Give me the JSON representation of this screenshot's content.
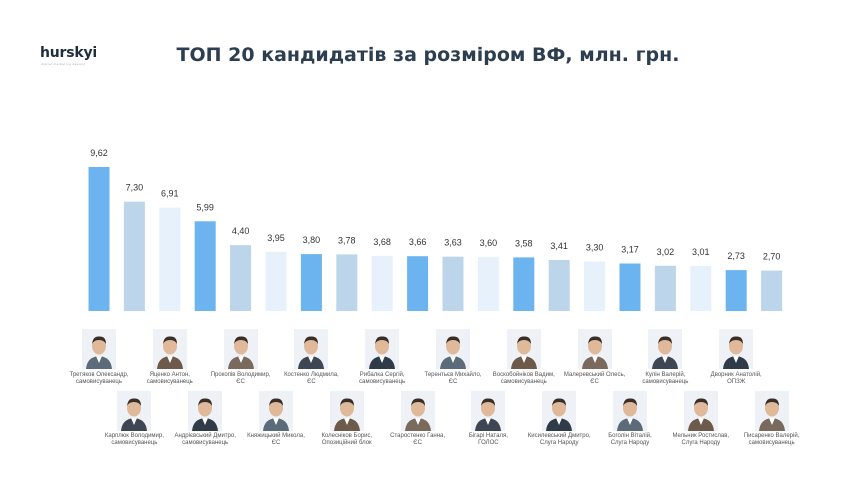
{
  "brand": {
    "logo": "hurskyi",
    "tagline": "digital marketing agency"
  },
  "title": "ТОП 20 кандидатів за розміром ВФ, млн. грн.",
  "colors": {
    "strong": "#6cb4ef",
    "medium": "#bcd5ea",
    "light": "#e6f1fb"
  },
  "chart_data": {
    "type": "bar",
    "title": "ТОП 20 кандидатів за розміром ВФ, млн. грн.",
    "categories": [
      "Третяков Олександр, самовисуванець",
      "Карплюк Володимир, самовисуванець",
      "Яценко Антон, самовисуванець",
      "Андрієвський Дмитро, самовисуванець",
      "Прокопів Володимир, ЄС",
      "Княжицький Микола, ЄС",
      "Костенко Людмила, ЄС",
      "Колесніков Борис, Опозиційний блок",
      "Рибалка Сергій, самовисуванець",
      "Старостенко Ганна, ЄС",
      "Терентьєв Михайло, ЄС",
      "Бігарі Наталя, ГОЛОС",
      "Воскобойніков Вадим, самовисуванець",
      "Кисилевський Дмитро, Слуга Народу",
      "Малеревський Олесь, ЄС",
      "Боголін Віталій, Слуга Народу",
      "Кулін Валерій, самовисуванець",
      "Мельник Ростислав, Слуга Народу",
      "Дворник Анатолій, ОПЗЖ",
      "Писаренко Валерій, самовисуванець"
    ],
    "values": [
      9.62,
      7.3,
      6.91,
      5.99,
      4.4,
      3.95,
      3.8,
      3.78,
      3.68,
      3.66,
      3.63,
      3.6,
      3.58,
      3.41,
      3.3,
      3.17,
      3.02,
      3.01,
      2.73,
      2.7
    ],
    "value_labels": [
      "9,62",
      "7,30",
      "6,91",
      "5,99",
      "4,40",
      "3,95",
      "3,80",
      "3,78",
      "3,68",
      "3,66",
      "3,63",
      "3,60",
      "3,58",
      "3,41",
      "3,30",
      "3,17",
      "3,02",
      "3,01",
      "2,73",
      "2,70"
    ],
    "bar_shades": [
      "strong",
      "medium",
      "light",
      "strong",
      "medium",
      "light",
      "strong",
      "medium",
      "light",
      "strong",
      "medium",
      "light",
      "strong",
      "medium",
      "light",
      "strong",
      "medium",
      "light",
      "strong",
      "medium"
    ],
    "ylim": [
      0,
      9.62
    ],
    "grid": false,
    "legend": "none"
  },
  "candidates": [
    {
      "name": "Третяков Олександр,",
      "party": "самовисуванець"
    },
    {
      "name": "Карплюк Володимир,",
      "party": "самовисуванець"
    },
    {
      "name": "Яценко Антон,",
      "party": "самовисуванець"
    },
    {
      "name": "Андрієвський Дмитро,",
      "party": "самовисуванець"
    },
    {
      "name": "Прокопів Володимир,",
      "party": "ЄС"
    },
    {
      "name": "Княжицький Микола,",
      "party": "ЄС"
    },
    {
      "name": "Костенко Людмила,",
      "party": "ЄС"
    },
    {
      "name": "Колесніков Борис,",
      "party": "Опозиційний блок"
    },
    {
      "name": "Рибалка Сергій,",
      "party": "самовисуванець"
    },
    {
      "name": "Старостенко Ганна,",
      "party": "ЄС"
    },
    {
      "name": "Терентьєв Михайло,",
      "party": "ЄС"
    },
    {
      "name": "Бігарі Наталя,",
      "party": "ГОЛОС"
    },
    {
      "name": "Воскобойніков Вадим,",
      "party": "самовисуванець"
    },
    {
      "name": "Кисилевський Дмитро,",
      "party": "Слуга Народу"
    },
    {
      "name": "Малеревський Олесь,",
      "party": "ЄС"
    },
    {
      "name": "Боголін Віталій,",
      "party": "Слуга Народу"
    },
    {
      "name": "Кулін Валерій,",
      "party": "самовисуванець"
    },
    {
      "name": "Мельник Ростислав,",
      "party": "Слуга Народу"
    },
    {
      "name": "Дворник Анатолій,",
      "party": "ОПЗЖ"
    },
    {
      "name": "Писаренко Валерій,",
      "party": "самовисуванець"
    }
  ],
  "photo_icon": "person-photo-icon"
}
